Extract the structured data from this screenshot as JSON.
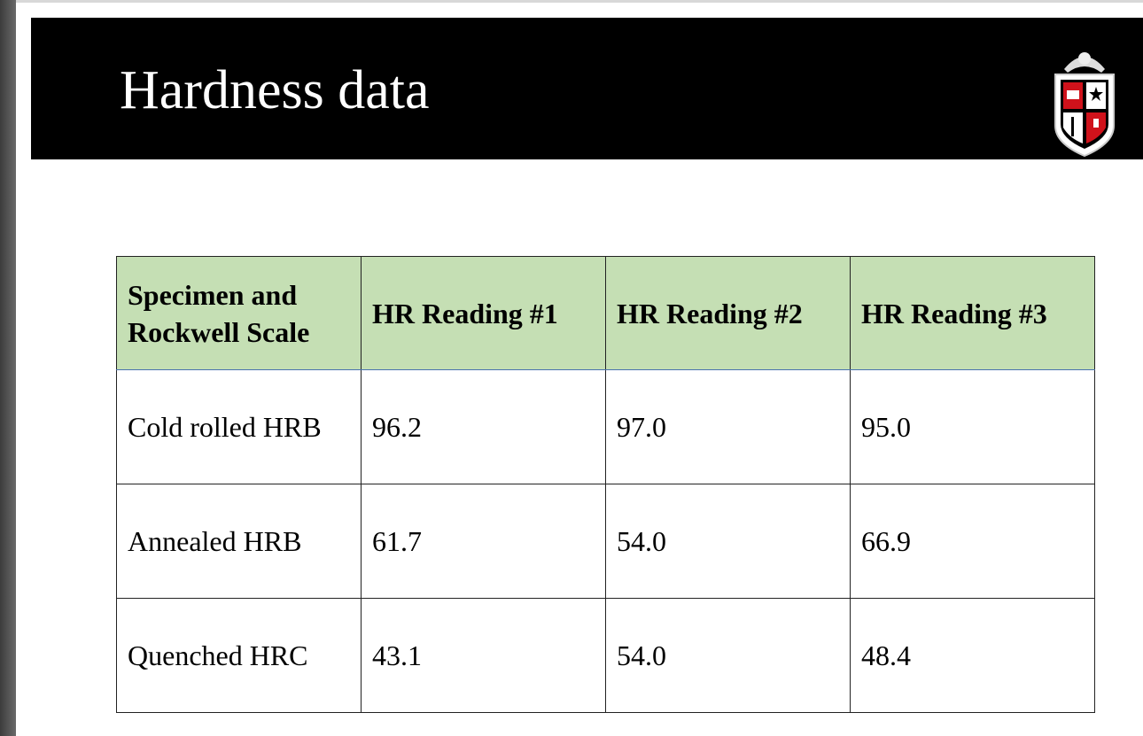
{
  "header": {
    "title": "Hardness data"
  },
  "table": {
    "columns": [
      "Specimen and Rockwell Scale",
      "HR Reading #1",
      "HR Reading #2",
      "HR Reading #3"
    ],
    "rows": [
      [
        "Cold rolled HRB",
        "96.2",
        "97.0",
        "95.0"
      ],
      [
        "Annealed HRB",
        "61.7",
        "54.0",
        "66.9"
      ],
      [
        "Quenched HRC",
        "43.1",
        "54.0",
        "48.4"
      ]
    ]
  }
}
